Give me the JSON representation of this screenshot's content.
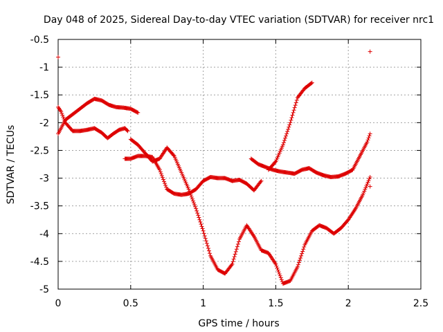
{
  "chart_data": {
    "type": "scatter",
    "title": "Day 048 of 2025, Sidereal Day-to-day VTEC variation (SDTVAR) for receiver nrc1",
    "xlabel": "GPS time / hours",
    "ylabel": "SDTVAR / TECUs",
    "xlim": [
      0,
      2.5
    ],
    "ylim": [
      -5,
      -0.5
    ],
    "xticks": [
      0,
      0.5,
      1,
      1.5,
      2,
      2.5
    ],
    "xtick_labels": [
      "0",
      "0.5",
      "1",
      "1.5",
      "2",
      "2.5"
    ],
    "yticks": [
      -0.5,
      -1,
      -1.5,
      -2,
      -2.5,
      -3,
      -3.5,
      -4,
      -4.5,
      -5
    ],
    "ytick_labels": [
      "-0.5",
      "-1",
      "-1.5",
      "-2",
      "-2.5",
      "-3",
      "-3.5",
      "-4",
      "-4.5",
      "-5"
    ],
    "grid": true,
    "marker": "plus",
    "color": "#dd0000",
    "series": [
      {
        "x": [
          0.0,
          0.02,
          0.05,
          0.1,
          0.15,
          0.2,
          0.25,
          0.3,
          0.35,
          0.4,
          0.45,
          0.5,
          0.55
        ],
        "y": [
          -2.2,
          -2.1,
          -1.95,
          -1.85,
          -1.75,
          -1.65,
          -1.57,
          -1.6,
          -1.68,
          -1.72,
          -1.73,
          -1.75,
          -1.82
        ]
      },
      {
        "x": [
          0.0,
          0.02,
          0.05,
          0.1,
          0.15,
          0.2,
          0.25,
          0.3,
          0.34,
          0.38,
          0.42,
          0.46,
          0.48
        ],
        "y": [
          -1.72,
          -1.8,
          -2.0,
          -2.15,
          -2.15,
          -2.13,
          -2.1,
          -2.18,
          -2.28,
          -2.2,
          -2.13,
          -2.1,
          -2.15
        ]
      },
      {
        "x": [
          0.46,
          0.5,
          0.55,
          0.6,
          0.65,
          0.7,
          0.75,
          0.8,
          0.85,
          0.9,
          0.95,
          1.0,
          1.05,
          1.1,
          1.15,
          1.2,
          1.25,
          1.3,
          1.35,
          1.4
        ],
        "y": [
          -2.65,
          -2.65,
          -2.6,
          -2.6,
          -2.62,
          -2.85,
          -3.2,
          -3.28,
          -3.3,
          -3.28,
          -3.2,
          -3.05,
          -2.98,
          -3.0,
          -3.0,
          -3.05,
          -3.03,
          -3.1,
          -3.22,
          -3.05
        ]
      },
      {
        "x": [
          0.5,
          0.55,
          0.6,
          0.65,
          0.7,
          0.75,
          0.8,
          0.85,
          0.9,
          0.95,
          1.0,
          1.05,
          1.1,
          1.15,
          1.2,
          1.25,
          1.3,
          1.35,
          1.4,
          1.45,
          1.5,
          1.55,
          1.6,
          1.65,
          1.7,
          1.75,
          1.8,
          1.85,
          1.9,
          1.95,
          2.0,
          2.05,
          2.1,
          2.15
        ],
        "y": [
          -2.3,
          -2.4,
          -2.55,
          -2.7,
          -2.65,
          -2.45,
          -2.6,
          -2.9,
          -3.2,
          -3.55,
          -3.95,
          -4.4,
          -4.65,
          -4.72,
          -4.55,
          -4.1,
          -3.85,
          -4.05,
          -4.3,
          -4.35,
          -4.55,
          -4.9,
          -4.85,
          -4.6,
          -4.2,
          -3.95,
          -3.85,
          -3.9,
          -4.0,
          -3.9,
          -3.75,
          -3.55,
          -3.3,
          -2.98
        ]
      },
      {
        "x": [
          1.33,
          1.38,
          1.43,
          1.48,
          1.53,
          1.58,
          1.63,
          1.68,
          1.73,
          1.78,
          1.83,
          1.88,
          1.93,
          1.98,
          2.03,
          2.08,
          2.13,
          2.15
        ],
        "y": [
          -2.65,
          -2.75,
          -2.8,
          -2.85,
          -2.88,
          -2.9,
          -2.92,
          -2.85,
          -2.82,
          -2.9,
          -2.95,
          -2.98,
          -2.97,
          -2.92,
          -2.85,
          -2.6,
          -2.35,
          -2.2
        ]
      },
      {
        "x": [
          1.45,
          1.5,
          1.55,
          1.6,
          1.65,
          1.7,
          1.75
        ],
        "y": [
          -2.85,
          -2.7,
          -2.4,
          -2.0,
          -1.55,
          -1.38,
          -1.28
        ]
      },
      {
        "x": [
          0.0,
          2.15,
          2.15
        ],
        "y": [
          -0.82,
          -0.72,
          -3.15
        ]
      }
    ]
  }
}
